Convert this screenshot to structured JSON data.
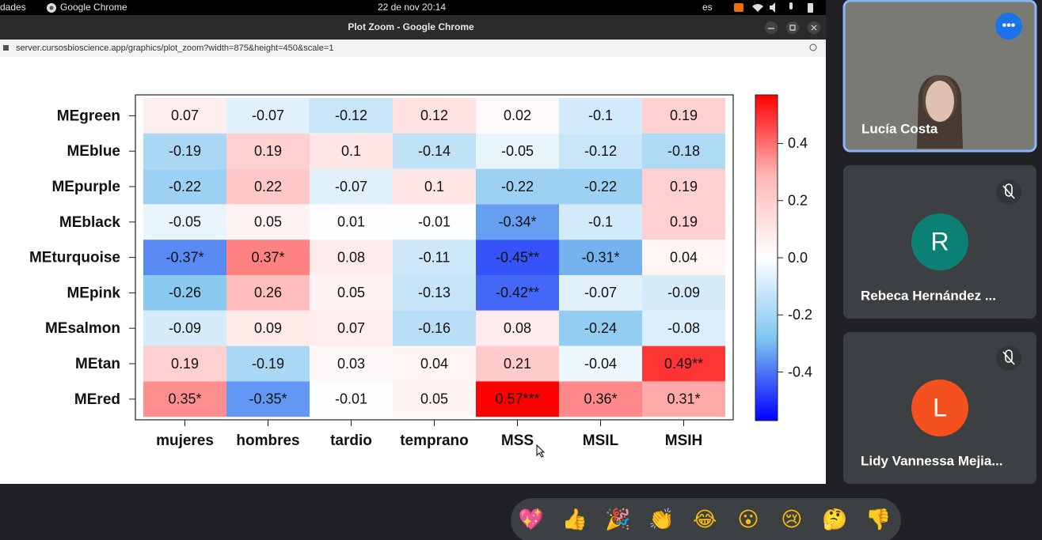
{
  "system_bar": {
    "app_menu": "dades",
    "app": "Google Chrome",
    "clock": "22 de nov 20:14",
    "language": "es"
  },
  "window": {
    "title": "Plot Zoom - Google Chrome",
    "url": "server.cursosbioscience.app/graphics/plot_zoom?width=875&height=450&scale=1"
  },
  "chart_data": {
    "type": "heatmap",
    "rows": [
      "MEgreen",
      "MEblue",
      "MEpurple",
      "MEblack",
      "MEturquoise",
      "MEpink",
      "MEsalmon",
      "MEtan",
      "MEred"
    ],
    "columns": [
      "mujeres",
      "hombres",
      "tardio",
      "temprano",
      "MSS",
      "MSIL",
      "MSIH"
    ],
    "values": [
      [
        0.07,
        -0.07,
        -0.12,
        0.12,
        0.02,
        -0.1,
        0.19
      ],
      [
        -0.19,
        0.19,
        0.1,
        -0.14,
        -0.05,
        -0.12,
        -0.18
      ],
      [
        -0.22,
        0.22,
        -0.07,
        0.1,
        -0.22,
        -0.22,
        0.19
      ],
      [
        -0.05,
        0.05,
        0.01,
        -0.01,
        -0.34,
        -0.1,
        0.19
      ],
      [
        -0.37,
        0.37,
        0.08,
        -0.11,
        -0.45,
        -0.31,
        0.04
      ],
      [
        -0.26,
        0.26,
        0.05,
        -0.13,
        -0.42,
        -0.07,
        -0.09
      ],
      [
        -0.09,
        0.09,
        0.07,
        -0.16,
        0.08,
        -0.24,
        -0.08
      ],
      [
        0.19,
        -0.19,
        0.03,
        0.04,
        0.21,
        -0.04,
        0.49
      ],
      [
        0.35,
        -0.35,
        -0.01,
        0.05,
        0.57,
        0.36,
        0.31
      ]
    ],
    "value_labels": [
      [
        "0.07",
        "-0.07",
        "-0.12",
        "0.12",
        "0.02",
        "-0.1",
        "0.19"
      ],
      [
        "-0.19",
        "0.19",
        "0.1",
        "-0.14",
        "-0.05",
        "-0.12",
        "-0.18"
      ],
      [
        "-0.22",
        "0.22",
        "-0.07",
        "0.1",
        "-0.22",
        "-0.22",
        "0.19"
      ],
      [
        "-0.05",
        "0.05",
        "0.01",
        "-0.01",
        "-0.34*",
        "-0.1",
        "0.19"
      ],
      [
        "-0.37*",
        "0.37*",
        "0.08",
        "-0.11",
        "-0.45**",
        "-0.31*",
        "0.04"
      ],
      [
        "-0.26",
        "0.26",
        "0.05",
        "-0.13",
        "-0.42**",
        "-0.07",
        "-0.09"
      ],
      [
        "-0.09",
        "0.09",
        "0.07",
        "-0.16",
        "0.08",
        "-0.24",
        "-0.08"
      ],
      [
        "0.19",
        "-0.19",
        "0.03",
        "0.04",
        "0.21",
        "-0.04",
        "0.49**"
      ],
      [
        "0.35*",
        "-0.35*",
        "-0.01",
        "0.05",
        "0.57***",
        "0.36*",
        "0.31*"
      ]
    ],
    "zlim": [
      -0.57,
      0.57
    ],
    "colorbar_ticks": [
      0.4,
      0.2,
      {
        "value": 0,
        "label": "0.0"
      },
      -0.2,
      -0.4
    ],
    "colormap": [
      "#0000ff",
      "#7fc4ef",
      "#ffffff",
      "#ffb8b8",
      "#ff0000"
    ]
  },
  "participants": [
    {
      "name": "Lucía Costa"
    },
    {
      "initial": "R",
      "name": "Rebeca Hernández ..."
    },
    {
      "initial": "L",
      "name": "Lidy Vannessa Mejia..."
    }
  ],
  "reactions": [
    "💖",
    "👍",
    "🎉",
    "👏",
    "😂",
    "😮",
    "😢",
    "🤔",
    "👎"
  ]
}
